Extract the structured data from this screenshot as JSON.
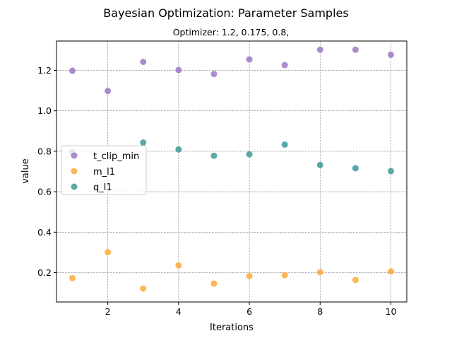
{
  "chart_data": {
    "type": "scatter",
    "title": "Bayesian Optimization: Parameter Samples",
    "subtitle": "Optimizer: 1.2, 0.175, 0.8,",
    "xlabel": "Iterations",
    "ylabel": "value",
    "xlim": [
      0.55,
      10.45
    ],
    "ylim": [
      0.055,
      1.345
    ],
    "xticks": [
      2,
      4,
      6,
      8,
      10
    ],
    "yticks": [
      0.2,
      0.4,
      0.6,
      0.8,
      1.0,
      1.2
    ],
    "xtick_labels": [
      "2",
      "4",
      "6",
      "8",
      "10"
    ],
    "ytick_labels": [
      "0.2",
      "0.4",
      "0.6",
      "0.8",
      "1.0",
      "1.2"
    ],
    "grid": true,
    "legend_position": "center-left",
    "x": [
      1,
      2,
      3,
      4,
      5,
      6,
      7,
      8,
      9,
      10
    ],
    "series": [
      {
        "name": "t_clip_min",
        "color": "#9b79c3",
        "values": [
          1.198,
          1.098,
          1.242,
          1.202,
          1.182,
          1.254,
          1.226,
          1.302,
          1.302,
          1.277
        ]
      },
      {
        "name": "m_l1",
        "color": "#fbaa3a",
        "values": [
          0.173,
          0.301,
          0.121,
          0.236,
          0.146,
          0.183,
          0.188,
          0.202,
          0.164,
          0.206
        ]
      },
      {
        "name": "q_l1",
        "color": "#3c9a98",
        "values": [
          0.796,
          null,
          0.843,
          0.809,
          0.778,
          0.785,
          0.833,
          0.732,
          0.716,
          0.702
        ]
      }
    ]
  }
}
